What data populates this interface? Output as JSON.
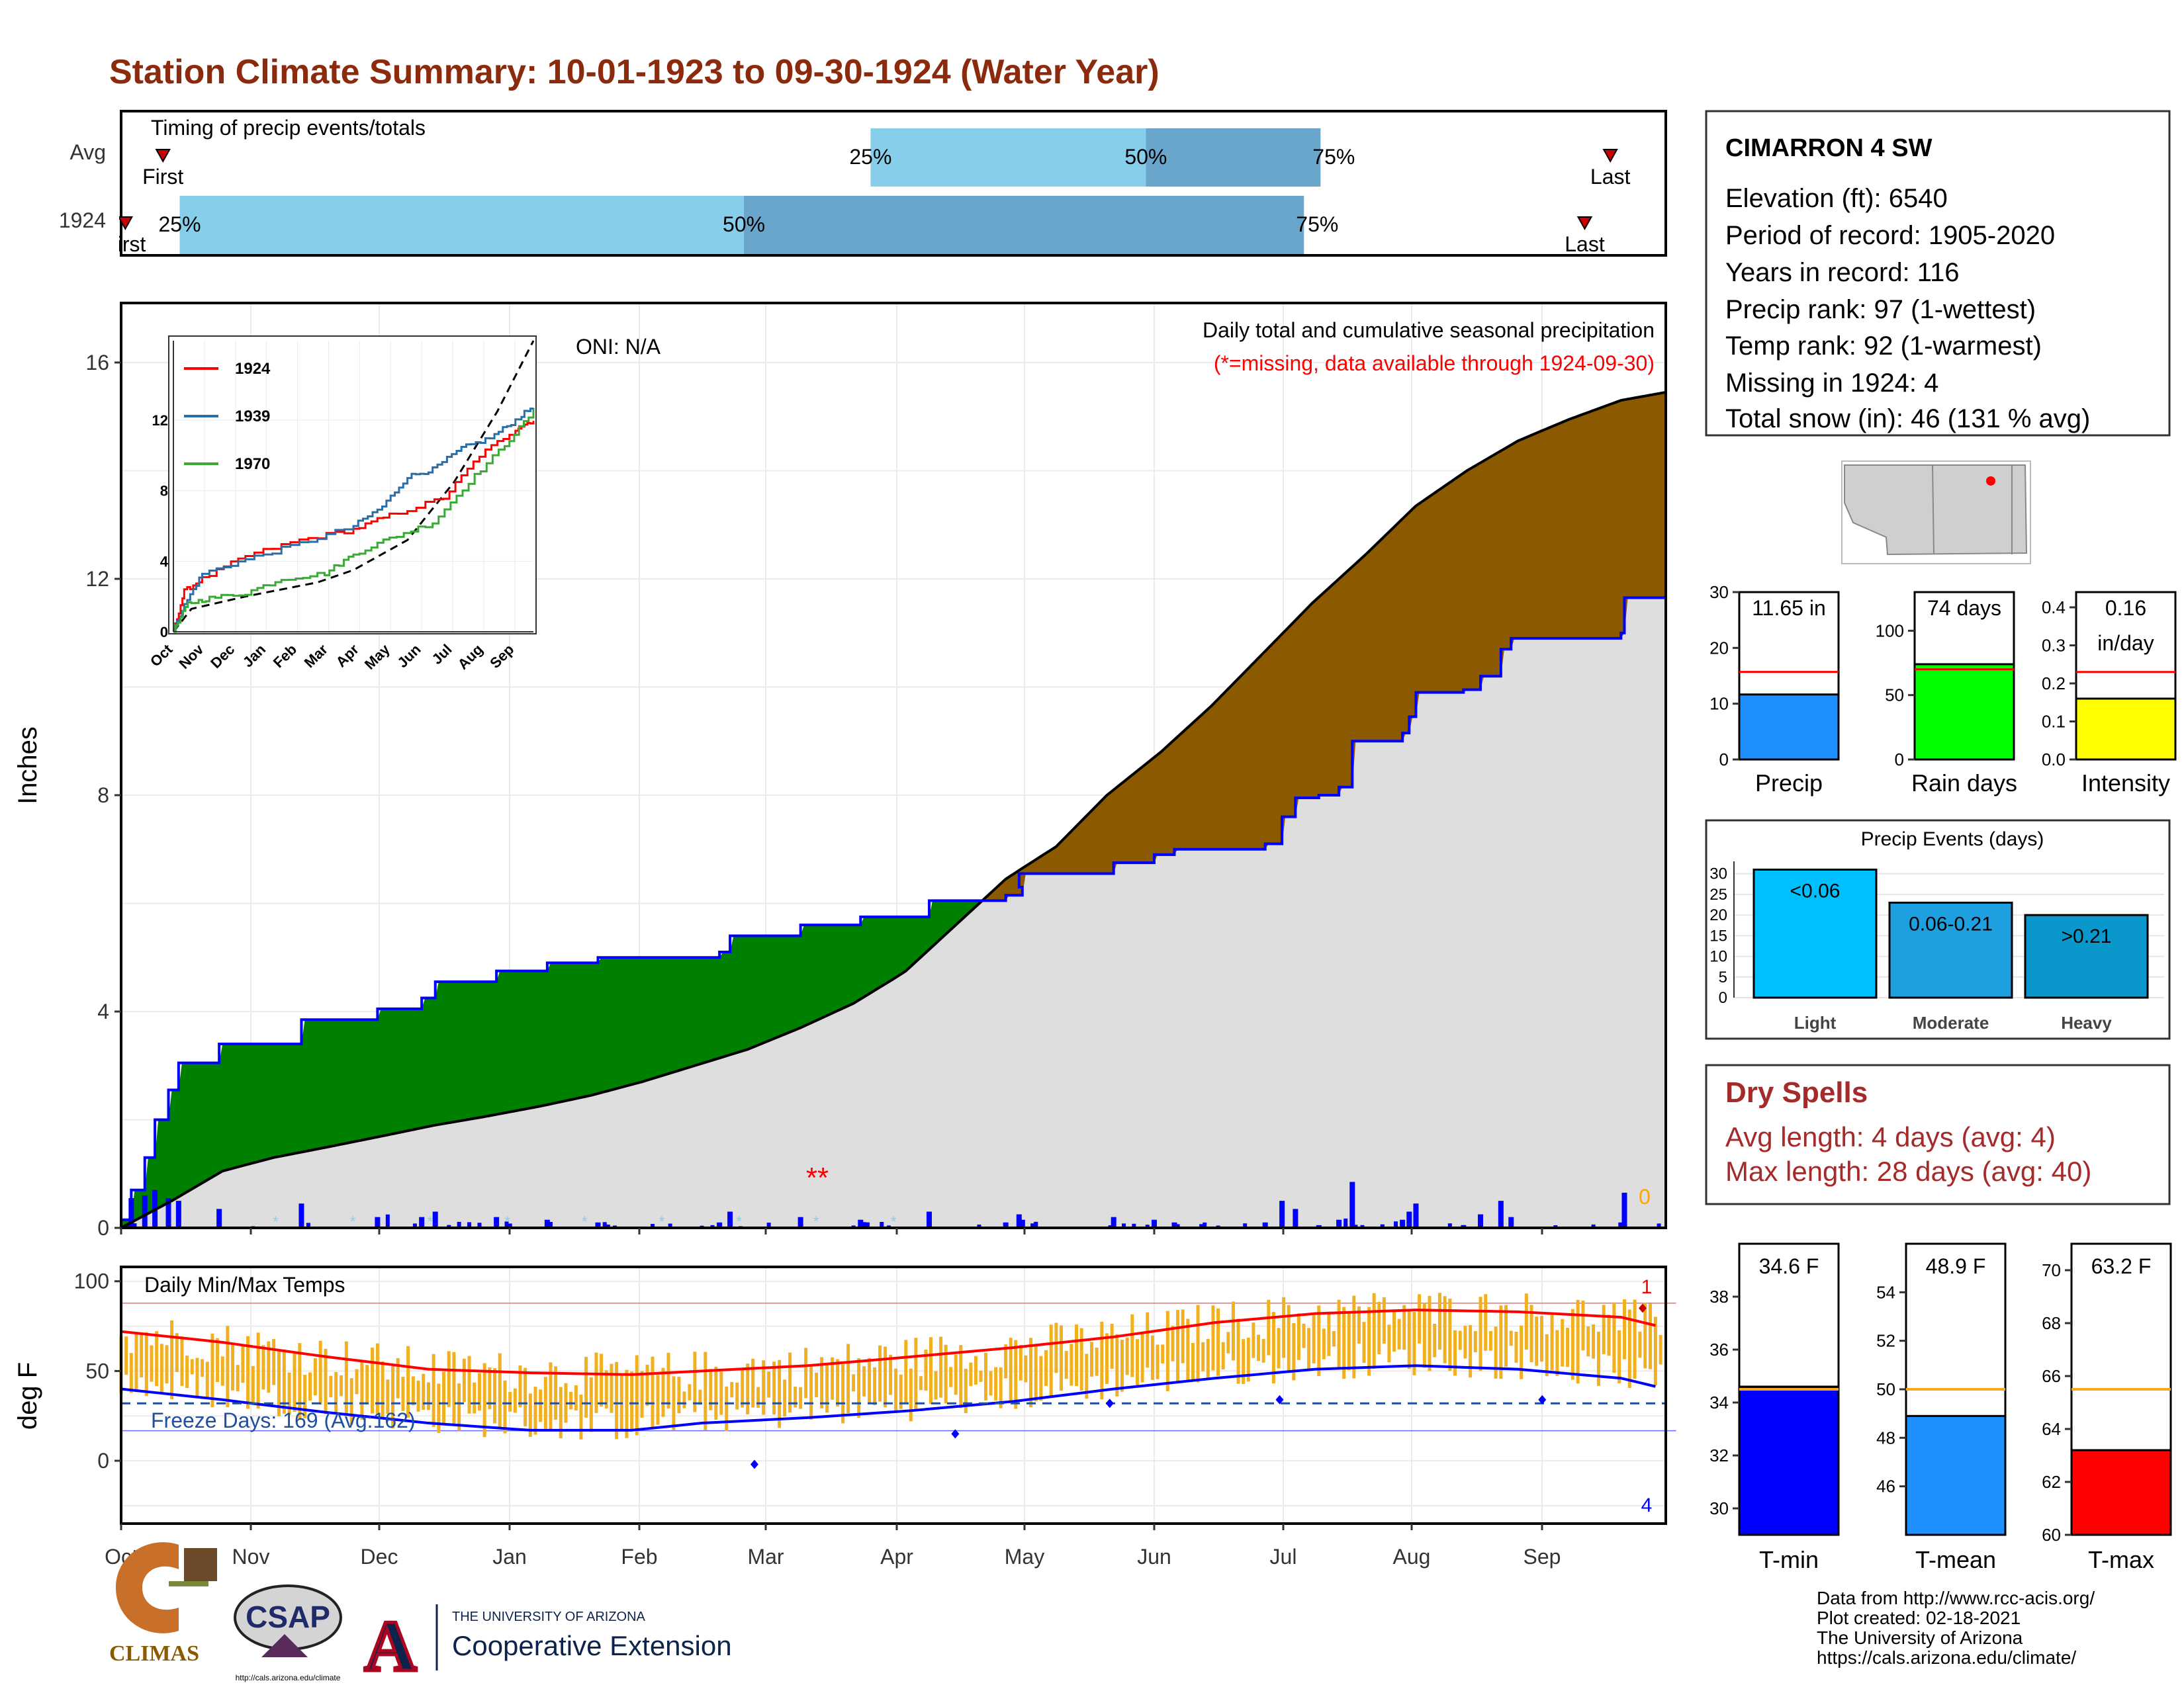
{
  "title": "Station Climate Summary: 10-01-1923 to 09-30-1924 (Water Year)",
  "months": [
    "Oct",
    "Nov",
    "Dec",
    "Jan",
    "Feb",
    "Mar",
    "Apr",
    "May",
    "Jun",
    "Jul",
    "Aug",
    "Sep"
  ],
  "colors": {
    "title": "#8b2a0c",
    "green": "#008000",
    "brown": "#8b5a00",
    "grey": "#dedede",
    "blue": "#0000ff",
    "light_blue": "#87ceeb",
    "mid_blue": "#6aa5cc",
    "orange": "#f0b020",
    "red": "#ff0000",
    "dry_red": "#a52a2a"
  },
  "timing": {
    "title": "Timing of precip events/totals",
    "rows": [
      {
        "label": "Avg",
        "first_label": "First",
        "last_label": "Last",
        "q25": "25%",
        "q50": "50%",
        "q75": "75%",
        "first_doy": 10,
        "q25_doy": 176,
        "q50_doy": 242,
        "q75_doy": 284,
        "last_doy": 353
      },
      {
        "label": "1924",
        "first_label": "First",
        "last_label": "Last",
        "q25": "25%",
        "q50": "50%",
        "q75": "75%",
        "first_doy": 1,
        "q25_doy": 14,
        "q50_doy": 147,
        "q75_doy": 280,
        "last_doy": 347
      }
    ]
  },
  "precip": {
    "ylabel": "Inches",
    "yticks": [
      0,
      4,
      8,
      12,
      16
    ],
    "ylim": [
      0,
      17.1
    ],
    "oni": "ONI: N/A",
    "note1": "Daily total and cumulative seasonal precipitation",
    "note2": "(*=missing, data available through 1924-09-30)",
    "snow_count": "0",
    "missing_marker": "**",
    "avg_cum": [
      [
        0,
        0
      ],
      [
        15,
        0.5
      ],
      [
        30,
        1.05
      ],
      [
        45,
        1.3
      ],
      [
        61,
        1.5
      ],
      [
        75,
        1.68
      ],
      [
        92,
        1.9
      ],
      [
        106,
        2.05
      ],
      [
        123,
        2.25
      ],
      [
        138,
        2.45
      ],
      [
        153,
        2.7
      ],
      [
        168,
        3.0
      ],
      [
        183,
        3.3
      ],
      [
        198,
        3.7
      ],
      [
        213,
        4.15
      ],
      [
        228,
        4.75
      ],
      [
        243,
        5.6
      ],
      [
        258,
        6.45
      ],
      [
        273,
        7.05
      ],
      [
        288,
        8.0
      ],
      [
        304,
        8.8
      ],
      [
        319,
        9.65
      ],
      [
        334,
        10.6
      ],
      [
        349,
        11.55
      ],
      [
        365,
        12.45
      ],
      [
        380,
        13.35
      ],
      [
        395,
        14.0
      ],
      [
        410,
        14.55
      ],
      [
        425,
        14.95
      ],
      [
        440,
        15.3
      ],
      [
        453,
        15.45
      ]
    ],
    "cum_1924": [
      [
        0,
        0.15
      ],
      [
        3,
        0.7
      ],
      [
        7,
        1.3
      ],
      [
        10,
        2.0
      ],
      [
        14,
        2.55
      ],
      [
        17,
        3.05
      ],
      [
        29,
        3.4
      ],
      [
        53,
        3.85
      ],
      [
        75,
        4.05
      ],
      [
        88,
        4.25
      ],
      [
        92,
        4.55
      ],
      [
        110,
        4.75
      ],
      [
        125,
        4.9
      ],
      [
        140,
        5.0
      ],
      [
        175,
        5.1
      ],
      [
        178,
        5.4
      ],
      [
        198,
        5.6
      ],
      [
        215,
        5.75
      ],
      [
        235,
        6.05
      ],
      [
        258,
        6.15
      ],
      [
        263,
        6.3
      ],
      [
        262,
        6.55
      ],
      [
        290,
        6.75
      ],
      [
        300,
        6.75
      ],
      [
        302,
        6.9
      ],
      [
        308,
        7.0
      ],
      [
        335,
        7.1
      ],
      [
        340,
        7.6
      ],
      [
        344,
        7.95
      ],
      [
        351,
        8.0
      ],
      [
        357,
        8.15
      ],
      [
        361,
        9.0
      ],
      [
        376,
        9.15
      ],
      [
        378,
        9.45
      ],
      [
        380,
        9.9
      ],
      [
        392,
        9.9
      ],
      [
        394,
        9.95
      ],
      [
        399,
        10.2
      ],
      [
        405,
        10.7
      ],
      [
        408,
        10.9
      ],
      [
        440,
        11.0
      ],
      [
        441,
        11.65
      ],
      [
        453,
        11.65
      ]
    ]
  },
  "inset": {
    "yticks": [
      0,
      4,
      8,
      12
    ],
    "series": [
      {
        "name": "1924",
        "color": "#ff0000"
      },
      {
        "name": "1939",
        "color": "#2a6ea8"
      },
      {
        "name": "1970",
        "color": "#3aaa35"
      }
    ]
  },
  "temp": {
    "ylabel": "deg F",
    "title": "Daily Min/Max Temps",
    "freeze": "Freeze Days: 169 (Avg:162)",
    "count_max": "1",
    "count_min": "4",
    "yticks": [
      0,
      50,
      100
    ],
    "ylim": [
      -35,
      108
    ],
    "freeze_line": 32,
    "avg_max": [
      [
        0,
        72
      ],
      [
        30,
        66
      ],
      [
        60,
        58
      ],
      [
        90,
        51
      ],
      [
        120,
        49
      ],
      [
        150,
        48
      ],
      [
        170,
        50
      ],
      [
        200,
        53
      ],
      [
        230,
        58
      ],
      [
        260,
        63
      ],
      [
        290,
        69
      ],
      [
        320,
        77
      ],
      [
        350,
        82
      ],
      [
        380,
        84
      ],
      [
        410,
        83
      ],
      [
        440,
        80
      ],
      [
        453,
        74
      ]
    ],
    "avg_min": [
      [
        0,
        40
      ],
      [
        30,
        34
      ],
      [
        60,
        27
      ],
      [
        90,
        21
      ],
      [
        120,
        17
      ],
      [
        150,
        17
      ],
      [
        170,
        21
      ],
      [
        200,
        24
      ],
      [
        230,
        28
      ],
      [
        260,
        33
      ],
      [
        290,
        40
      ],
      [
        320,
        46
      ],
      [
        350,
        51
      ],
      [
        380,
        53
      ],
      [
        410,
        51
      ],
      [
        440,
        46
      ],
      [
        453,
        40
      ]
    ]
  },
  "station": {
    "name": "CIMARRON 4 SW",
    "lines": [
      "Elevation (ft): 6540",
      "Period of record: 1905-2020",
      "Years in record: 116",
      "Precip rank: 97 (1-wettest)",
      "Temp rank: 92 (1-warmest)",
      "Missing in 1924: 4",
      "Total snow (in): 46 (131 % avg)"
    ]
  },
  "mini_precip": [
    {
      "label": "Precip",
      "value_text": "11.65 in",
      "value": 11.65,
      "avg": 15.7,
      "ymax": 30,
      "yticks": [
        "0",
        "10",
        "20",
        "30"
      ],
      "tickvals": [
        0,
        10,
        20,
        30
      ],
      "color": "#1e90ff"
    },
    {
      "label": "Rain days",
      "value_text": "74 days",
      "value": 74,
      "avg": 70,
      "ymax": 130,
      "yticks": [
        "0",
        "50",
        "100"
      ],
      "tickvals": [
        0,
        50,
        100
      ],
      "color": "#00ff00"
    },
    {
      "label": "Intensity",
      "value_text": "0.16",
      "value_text2": "in/day",
      "value": 0.16,
      "avg": 0.23,
      "ymax": 0.44,
      "yticks": [
        "0.0",
        "0.1",
        "0.2",
        "0.3",
        "0.4"
      ],
      "tickvals": [
        0,
        0.1,
        0.2,
        0.3,
        0.4
      ],
      "color": "#ffff00"
    }
  ],
  "events": {
    "title": "Precip Events (days)",
    "yticks": [
      0,
      5,
      10,
      15,
      20,
      25,
      30
    ],
    "bars": [
      {
        "label": "Light",
        "range": "<0.06",
        "value": 31,
        "color": "#00bfff"
      },
      {
        "label": "Moderate",
        "range": "0.06-0.21",
        "value": 23,
        "color": "#1e9fe0"
      },
      {
        "label": "Heavy",
        "range": ">0.21",
        "value": 20,
        "color": "#0a97cc"
      }
    ]
  },
  "dry": {
    "title": "Dry Spells",
    "avg_line": "Avg length: 4 days (avg: 4)",
    "max_line": "Max length: 28 days (avg: 40)"
  },
  "mini_temp": [
    {
      "label": "T-min",
      "value_text": "34.6 F",
      "value": 34.6,
      "avg": 34.5,
      "ymin": 29,
      "ymax": 40,
      "yticks": [
        "30",
        "32",
        "34",
        "36",
        "38"
      ],
      "tickvals": [
        30,
        32,
        34,
        36,
        38
      ],
      "color": "#0000ff"
    },
    {
      "label": "T-mean",
      "value_text": "48.9 F",
      "value": 48.9,
      "avg": 50,
      "ymin": 44,
      "ymax": 56,
      "yticks": [
        "46",
        "48",
        "50",
        "52",
        "54"
      ],
      "tickvals": [
        46,
        48,
        50,
        52,
        54
      ],
      "color": "#1e90ff"
    },
    {
      "label": "T-max",
      "value_text": "63.2 F",
      "value": 63.2,
      "avg": 65.5,
      "ymin": 60,
      "ymax": 71,
      "yticks": [
        "60",
        "62",
        "64",
        "66",
        "68",
        "70"
      ],
      "tickvals": [
        60,
        62,
        64,
        66,
        68,
        70
      ],
      "color": "#ff0000"
    }
  ],
  "footer": {
    "lines": [
      "Data from http://www.rcc-acis.org/",
      "Plot created: 02-18-2021",
      "The University of Arizona",
      "https://cals.arizona.edu/climate/"
    ],
    "climas": "CLIMAS",
    "csap": "CSAP",
    "csap_url": "http://cals.arizona.edu/climate",
    "ua_small": "THE UNIVERSITY OF ARIZONA",
    "ua_big": "Cooperative Extension",
    "ua_letter": "A"
  }
}
